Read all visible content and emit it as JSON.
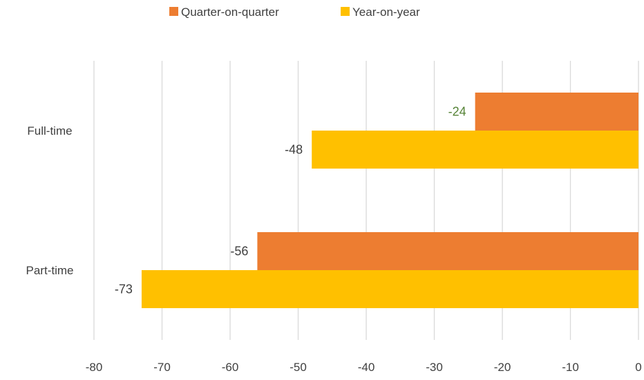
{
  "chart_data": {
    "type": "bar",
    "orientation": "horizontal",
    "categories": [
      "Full-time",
      "Part-time"
    ],
    "series": [
      {
        "name": "Quarter-on-quarter",
        "values": [
          -24,
          -56
        ],
        "color": "#ED7D31"
      },
      {
        "name": "Year-on-year",
        "values": [
          -48,
          -73
        ],
        "color": "#FFC000"
      }
    ],
    "data_labels": [
      {
        "series": 0,
        "category": 0,
        "text": "-24",
        "color": "#548235"
      },
      {
        "series": 0,
        "category": 1,
        "text": "-56",
        "color": "#404040"
      },
      {
        "series": 1,
        "category": 0,
        "text": "-48",
        "color": "#404040"
      },
      {
        "series": 1,
        "category": 1,
        "text": "-73",
        "color": "#404040"
      }
    ],
    "xlim": [
      -80,
      0
    ],
    "xticks": [
      -80,
      -70,
      -60,
      -50,
      -40,
      -30,
      -20,
      -10,
      0
    ],
    "xtick_labels": [
      "-80",
      "-70",
      "-60",
      "-50",
      "-40",
      "-30",
      "-20",
      "-10",
      "0"
    ],
    "grid": true,
    "legend_position": "top",
    "title": "",
    "xlabel": "",
    "ylabel": ""
  }
}
